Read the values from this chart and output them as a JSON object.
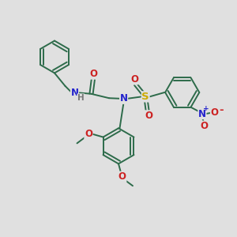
{
  "bg_color": "#e0e0e0",
  "bond_color": "#2d6b4a",
  "bond_lw": 1.4,
  "N_color": "#2222cc",
  "O_color": "#cc2222",
  "S_color": "#ccaa00",
  "H_color": "#777777",
  "font_size": 7.5,
  "figsize": [
    3.0,
    3.0
  ],
  "dpi": 100,
  "xlim": [
    0,
    10
  ],
  "ylim": [
    0,
    10
  ]
}
